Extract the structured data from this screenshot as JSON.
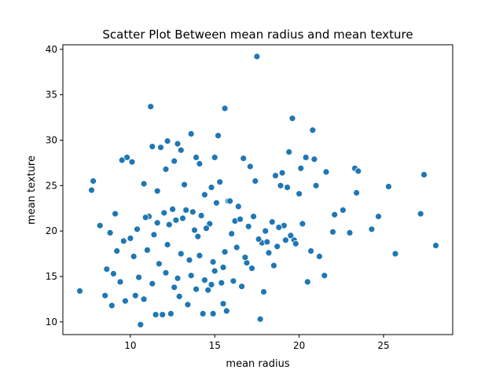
{
  "chart_data": {
    "type": "scatter",
    "title": "Scatter Plot Between mean radius and mean texture",
    "xlabel": "mean radius",
    "ylabel": "mean texture",
    "xlim": [
      6.0,
      29.1
    ],
    "ylim": [
      8.6,
      40.5
    ],
    "xticks": [
      10,
      15,
      20,
      25
    ],
    "yticks": [
      10,
      15,
      20,
      25,
      30,
      35,
      40
    ],
    "grid": false,
    "legend": "none",
    "color": "#1f77b4",
    "series": [
      {
        "x": [
          17.5,
          11.2,
          15.6,
          19.6,
          20.8,
          11.3,
          15.2,
          12.8,
          13.6,
          11.8,
          12.2,
          13.9,
          12.1,
          13.0,
          14.1,
          15.0,
          12.6,
          9.8,
          9.5,
          10.1,
          7.8,
          7.7,
          10.8,
          11.6,
          13.2,
          14.4,
          14.8,
          15.3,
          16.7,
          17.1,
          17.4,
          18.6,
          18.9,
          19.4,
          20.1,
          20.4,
          20.9,
          23.3,
          23.5,
          25.3,
          27.4,
          19.0,
          19.3,
          20.0,
          21.0,
          21.6,
          22.1,
          22.6,
          23.0,
          23.4,
          24.3,
          24.7,
          27.2,
          28.1,
          25.7,
          21.2,
          21.5,
          20.7,
          20.5,
          17.9,
          16.9,
          17.7,
          18.2,
          19.1,
          19.7,
          18.0,
          17.3,
          16.4,
          17.8,
          15.5,
          15.7,
          14.9,
          15.8,
          7.0,
          8.2,
          8.5,
          8.9,
          9.4,
          9.7,
          10.3,
          10.6,
          10.8,
          11.5,
          11.9,
          12.4,
          12.9,
          13.4,
          14.3,
          14.6,
          15.4,
          11.1,
          11.6,
          12.0,
          12.5,
          13.1,
          13.7,
          14.2,
          14.7,
          15.1,
          15.9,
          16.2,
          8.8,
          9.1,
          9.6,
          10.0,
          10.4,
          10.9,
          11.4,
          12.3,
          12.7,
          13.3,
          13.8,
          14.0,
          14.5,
          16.0,
          16.5,
          17.0,
          17.6,
          18.4,
          18.8,
          19.5,
          20.2,
          9.2,
          10.2,
          11.0,
          11.7,
          12.2,
          13.0,
          13.5,
          14.1,
          14.9,
          15.6,
          16.3,
          16.8,
          17.2,
          18.1,
          18.7,
          19.2,
          19.8,
          22.0,
          12.1,
          12.8,
          13.6,
          14.4,
          15.0,
          15.5,
          8.6,
          9.0,
          10.5,
          11.3,
          12.6,
          13.9,
          14.8,
          16.1,
          16.6,
          18.5
        ],
        "y": [
          39.2,
          33.7,
          33.5,
          32.4,
          31.1,
          29.3,
          30.5,
          29.6,
          30.7,
          29.2,
          29.9,
          28.1,
          26.8,
          28.9,
          27.4,
          28.1,
          27.7,
          28.1,
          27.8,
          27.6,
          25.5,
          24.5,
          25.2,
          24.4,
          25.1,
          24.0,
          24.8,
          25.4,
          28.0,
          27.1,
          25.5,
          26.1,
          25.0,
          28.7,
          26.9,
          28.1,
          27.9,
          26.9,
          26.6,
          24.9,
          26.2,
          26.4,
          24.8,
          24.1,
          25.0,
          26.5,
          21.8,
          22.3,
          19.8,
          24.2,
          20.2,
          21.6,
          21.9,
          18.4,
          17.5,
          17.2,
          15.1,
          17.8,
          14.4,
          13.3,
          16.5,
          10.3,
          17.6,
          20.6,
          19.0,
          20.0,
          21.6,
          22.7,
          18.7,
          12.0,
          11.2,
          10.9,
          23.3,
          13.4,
          20.6,
          12.9,
          11.8,
          14.4,
          12.3,
          12.9,
          9.7,
          12.5,
          10.8,
          10.8,
          10.9,
          12.8,
          11.9,
          10.9,
          13.5,
          14.3,
          21.6,
          20.9,
          22.0,
          22.4,
          21.4,
          22.1,
          21.7,
          20.8,
          23.1,
          23.3,
          21.1,
          19.8,
          21.9,
          18.9,
          19.2,
          20.2,
          21.5,
          19.6,
          20.7,
          21.2,
          22.3,
          20.1,
          19.4,
          20.3,
          19.7,
          21.3,
          20.5,
          19.1,
          21.0,
          20.4,
          19.5,
          20.8,
          17.8,
          17.2,
          17.9,
          16.4,
          18.5,
          17.5,
          16.8,
          17.3,
          16.6,
          17.7,
          18.2,
          17.1,
          15.9,
          18.8,
          18.3,
          19.0,
          18.6,
          19.9,
          15.4,
          14.8,
          15.1,
          14.6,
          15.6,
          16.0,
          15.8,
          15.3,
          14.9,
          14.2,
          13.8,
          13.6,
          14.1,
          14.5,
          13.9,
          16.2
        ]
      }
    ]
  }
}
